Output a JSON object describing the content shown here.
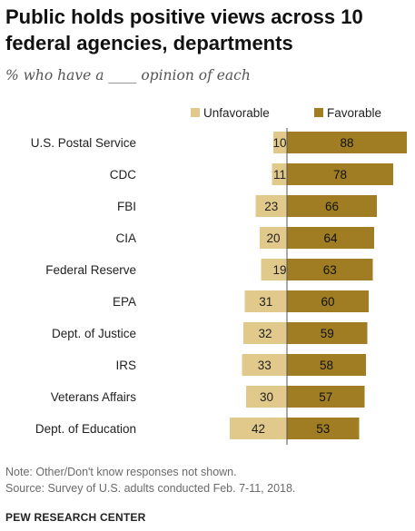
{
  "title": "Public holds positive views across 10 federal agencies, departments",
  "subtitle": "% who have a ____ opinion of each",
  "note": "Note: Other/Don't know responses not shown.",
  "source": "Source: Survey of U.S. adults conducted Feb. 7-11, 2018.",
  "brand": "PEW RESEARCH CENTER",
  "colors": {
    "unfavorable": "#e0c98a",
    "favorable": "#a07d22",
    "axis": "#555555"
  },
  "chart_data": {
    "type": "bar",
    "orientation": "horizontal-diverging",
    "categories": [
      "U.S. Postal Service",
      "CDC",
      "FBI",
      "CIA",
      "Federal Reserve",
      "EPA",
      "Dept. of Justice",
      "IRS",
      "Veterans Affairs",
      "Dept. of Education"
    ],
    "series": [
      {
        "name": "Unfavorable",
        "values": [
          10,
          11,
          23,
          20,
          19,
          31,
          32,
          33,
          30,
          42
        ]
      },
      {
        "name": "Favorable",
        "values": [
          88,
          78,
          66,
          64,
          63,
          60,
          59,
          58,
          57,
          53
        ]
      }
    ],
    "legend_position": "top-right",
    "grid": false
  }
}
